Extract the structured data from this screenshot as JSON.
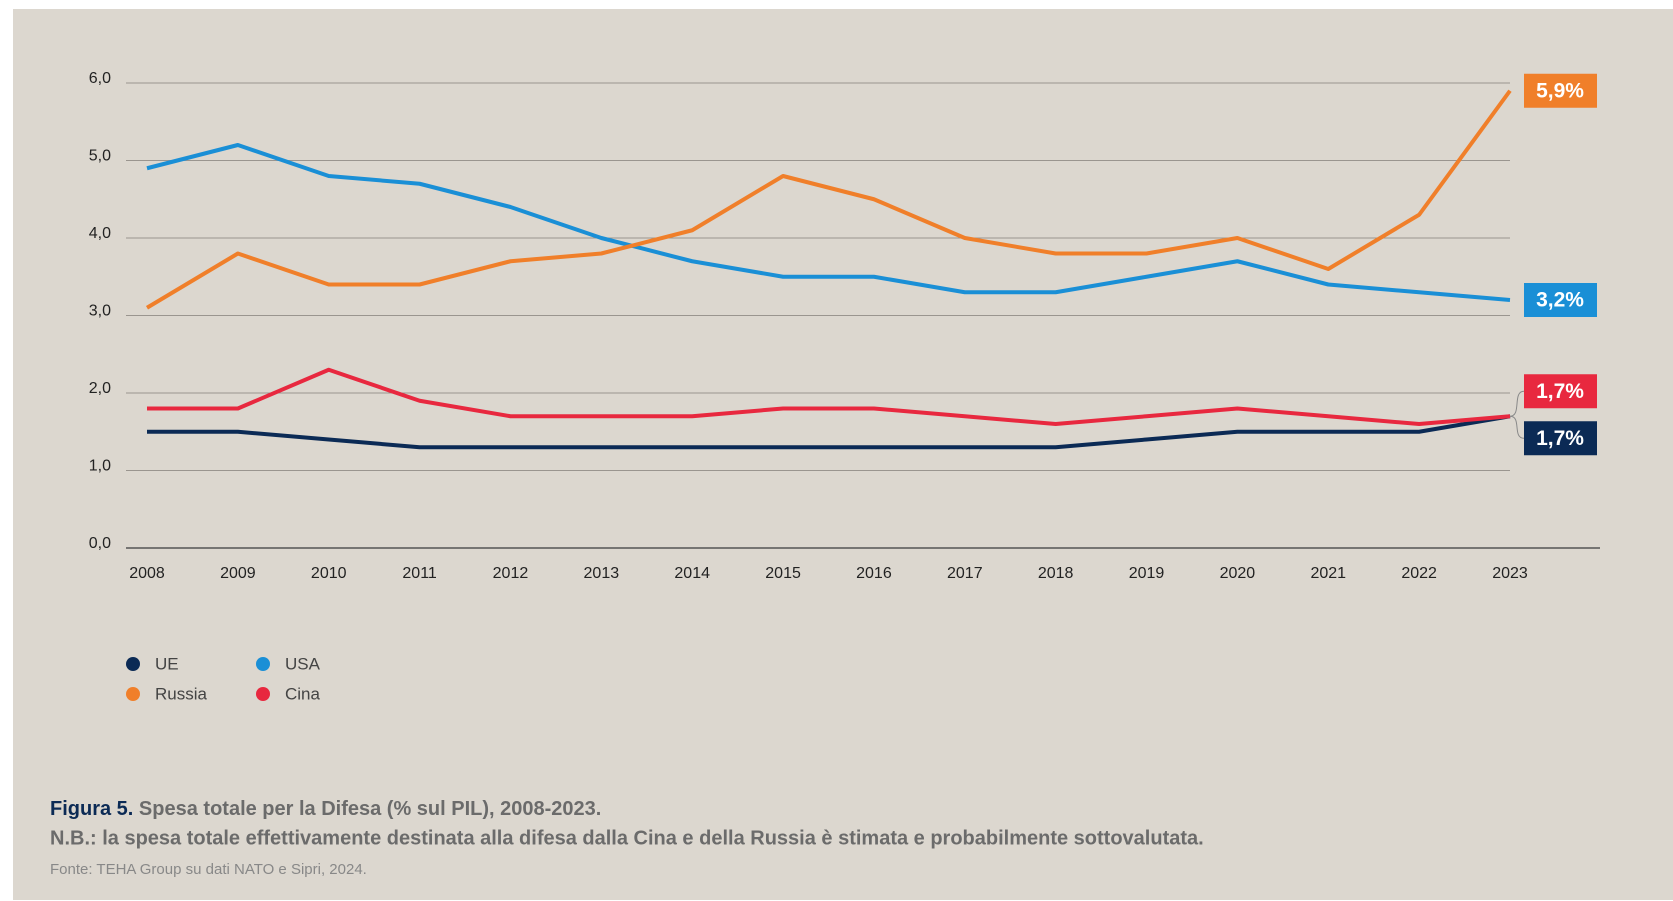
{
  "chart_data": {
    "type": "line",
    "categories": [
      "2008",
      "2009",
      "2010",
      "2011",
      "2012",
      "2013",
      "2014",
      "2015",
      "2016",
      "2017",
      "2018",
      "2019",
      "2020",
      "2021",
      "2022",
      "2023"
    ],
    "series": [
      {
        "name": "UE",
        "color": "#0b2a55",
        "values": [
          1.5,
          1.5,
          1.4,
          1.3,
          1.3,
          1.3,
          1.3,
          1.3,
          1.3,
          1.3,
          1.3,
          1.4,
          1.5,
          1.5,
          1.5,
          1.7
        ],
        "value_labels": [
          null,
          null,
          null,
          null,
          null,
          null,
          null,
          null,
          null,
          null,
          null,
          null,
          null,
          null,
          null,
          "1,7%"
        ]
      },
      {
        "name": "USA",
        "color": "#1a8fd6",
        "values": [
          4.9,
          5.2,
          4.8,
          4.7,
          4.4,
          4.0,
          3.7,
          3.5,
          3.5,
          3.3,
          3.3,
          3.5,
          3.7,
          3.4,
          3.3,
          3.2
        ],
        "value_labels": [
          null,
          null,
          null,
          null,
          null,
          null,
          null,
          null,
          null,
          null,
          null,
          null,
          null,
          null,
          null,
          "3,2%"
        ]
      },
      {
        "name": "Russia",
        "color": "#f07f2a",
        "values": [
          3.1,
          3.8,
          3.4,
          3.4,
          3.7,
          3.8,
          4.1,
          4.8,
          4.5,
          4.0,
          3.8,
          3.8,
          4.0,
          3.6,
          4.3,
          5.9
        ],
        "value_labels": [
          null,
          null,
          null,
          null,
          null,
          null,
          null,
          null,
          null,
          null,
          null,
          null,
          null,
          null,
          null,
          "5,9%"
        ]
      },
      {
        "name": "Cina",
        "color": "#e8283f",
        "values": [
          1.8,
          1.8,
          2.3,
          1.9,
          1.7,
          1.7,
          1.7,
          1.8,
          1.8,
          1.7,
          1.6,
          1.7,
          1.8,
          1.7,
          1.6,
          1.7
        ],
        "value_labels": [
          null,
          null,
          null,
          null,
          null,
          null,
          null,
          null,
          null,
          null,
          null,
          null,
          null,
          null,
          null,
          "1,7%"
        ]
      }
    ],
    "ylim": [
      0,
      6
    ],
    "yticks": [
      {
        "value": 0,
        "label": "0,0"
      },
      {
        "value": 1,
        "label": "1,0"
      },
      {
        "value": 2,
        "label": "2,0"
      },
      {
        "value": 3,
        "label": "3,0"
      },
      {
        "value": 4,
        "label": "4,0"
      },
      {
        "value": 5,
        "label": "5,0"
      },
      {
        "value": 6,
        "label": "6,0"
      }
    ],
    "grid": true,
    "caption_label": "Figura 5.",
    "caption_title": "Spesa totale per la Difesa (% sul PIL), 2008-2023.",
    "note": "N.B.: la spesa totale effettivamente destinata alla difesa dalla Cina e della Russia è stimata e probabilmente sottovalutata.",
    "source": "Fonte: TEHA Group su dati NATO e Sipri, 2024."
  }
}
